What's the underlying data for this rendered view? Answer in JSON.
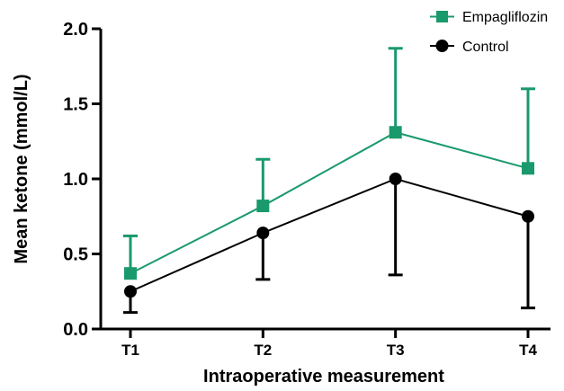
{
  "chart_data": {
    "type": "line",
    "categories": [
      "T1",
      "T2",
      "T3",
      "T4"
    ],
    "xlabel": "Intraoperative measurement",
    "ylabel": "Mean ketone (mmol/L)",
    "ylim": [
      0,
      2.0
    ],
    "yticks": [
      "0.0",
      "0.5",
      "1.0",
      "1.5",
      "2.0"
    ],
    "grid": false,
    "legend_position": "top-right",
    "series": [
      {
        "name": "Empagliflozin",
        "color": "#1a9a6c",
        "marker": "square",
        "error_direction": "up",
        "values": [
          0.37,
          0.82,
          1.31,
          1.07
        ],
        "error_upper": [
          0.62,
          1.13,
          1.87,
          1.6
        ]
      },
      {
        "name": "Control",
        "color": "#000000",
        "marker": "circle",
        "error_direction": "down",
        "values": [
          0.25,
          0.64,
          1.0,
          0.75
        ],
        "error_lower": [
          0.11,
          0.33,
          0.36,
          0.14
        ]
      }
    ]
  }
}
